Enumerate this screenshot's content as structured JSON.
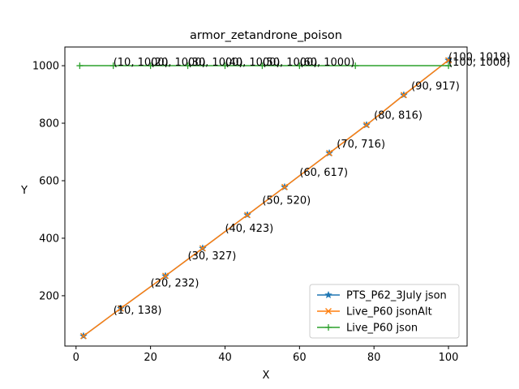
{
  "chart_data": {
    "type": "line",
    "title": "armor_zetandrone_poison",
    "xlabel": "X",
    "ylabel": "Y",
    "xlim": [
      -3,
      105
    ],
    "ylim": [
      25,
      1065
    ],
    "xticks": [
      0,
      20,
      40,
      60,
      80,
      100
    ],
    "yticks": [
      200,
      400,
      600,
      800,
      1000
    ],
    "grid": false,
    "legend_position": "lower right",
    "series": [
      {
        "name": "PTS_P62_3July json",
        "color": "#1f77b4",
        "marker": "star",
        "x": [
          2,
          12,
          24,
          34,
          46,
          56,
          68,
          78,
          88,
          100
        ],
        "y": [
          60,
          156,
          269,
          365,
          481,
          578,
          696,
          794,
          898,
          1019
        ]
      },
      {
        "name": "Live_P60 jsonAlt",
        "color": "#ff7f0e",
        "marker": "x",
        "x": [
          2,
          12,
          24,
          34,
          46,
          56,
          68,
          78,
          88,
          100
        ],
        "y": [
          60,
          156,
          269,
          365,
          481,
          578,
          696,
          794,
          898,
          1019
        ]
      },
      {
        "name": "Live_P60 json",
        "color": "#2ca02c",
        "marker": "plus",
        "x": [
          1,
          10,
          20,
          30,
          40,
          50,
          60,
          75,
          100
        ],
        "y": [
          1000,
          1000,
          1000,
          1000,
          1000,
          1000,
          1000,
          1000,
          1000
        ]
      }
    ],
    "annotations": [
      {
        "text": "(10, 138)",
        "x": 10,
        "y": 138
      },
      {
        "text": "(20, 232)",
        "x": 20,
        "y": 232
      },
      {
        "text": "(30, 327)",
        "x": 30,
        "y": 327
      },
      {
        "text": "(40, 423)",
        "x": 40,
        "y": 423
      },
      {
        "text": "(50, 520)",
        "x": 50,
        "y": 520
      },
      {
        "text": "(60, 617)",
        "x": 60,
        "y": 617
      },
      {
        "text": "(70, 716)",
        "x": 70,
        "y": 716
      },
      {
        "text": "(80, 816)",
        "x": 80,
        "y": 816
      },
      {
        "text": "(90, 917)",
        "x": 90,
        "y": 917
      },
      {
        "text": "(100, 1019)",
        "x": 100,
        "y": 1019
      },
      {
        "text": "(10, 1000)",
        "x": 10,
        "y": 1000
      },
      {
        "text": "(20, 1000)",
        "x": 20,
        "y": 1000
      },
      {
        "text": "(30, 1000)",
        "x": 30,
        "y": 1000
      },
      {
        "text": "(40, 1000)",
        "x": 40,
        "y": 1000
      },
      {
        "text": "(50, 1000)",
        "x": 50,
        "y": 1000
      },
      {
        "text": "(60, 1000)",
        "x": 60,
        "y": 1000
      },
      {
        "text": "(100, 1000)",
        "x": 100,
        "y": 1000
      }
    ]
  }
}
